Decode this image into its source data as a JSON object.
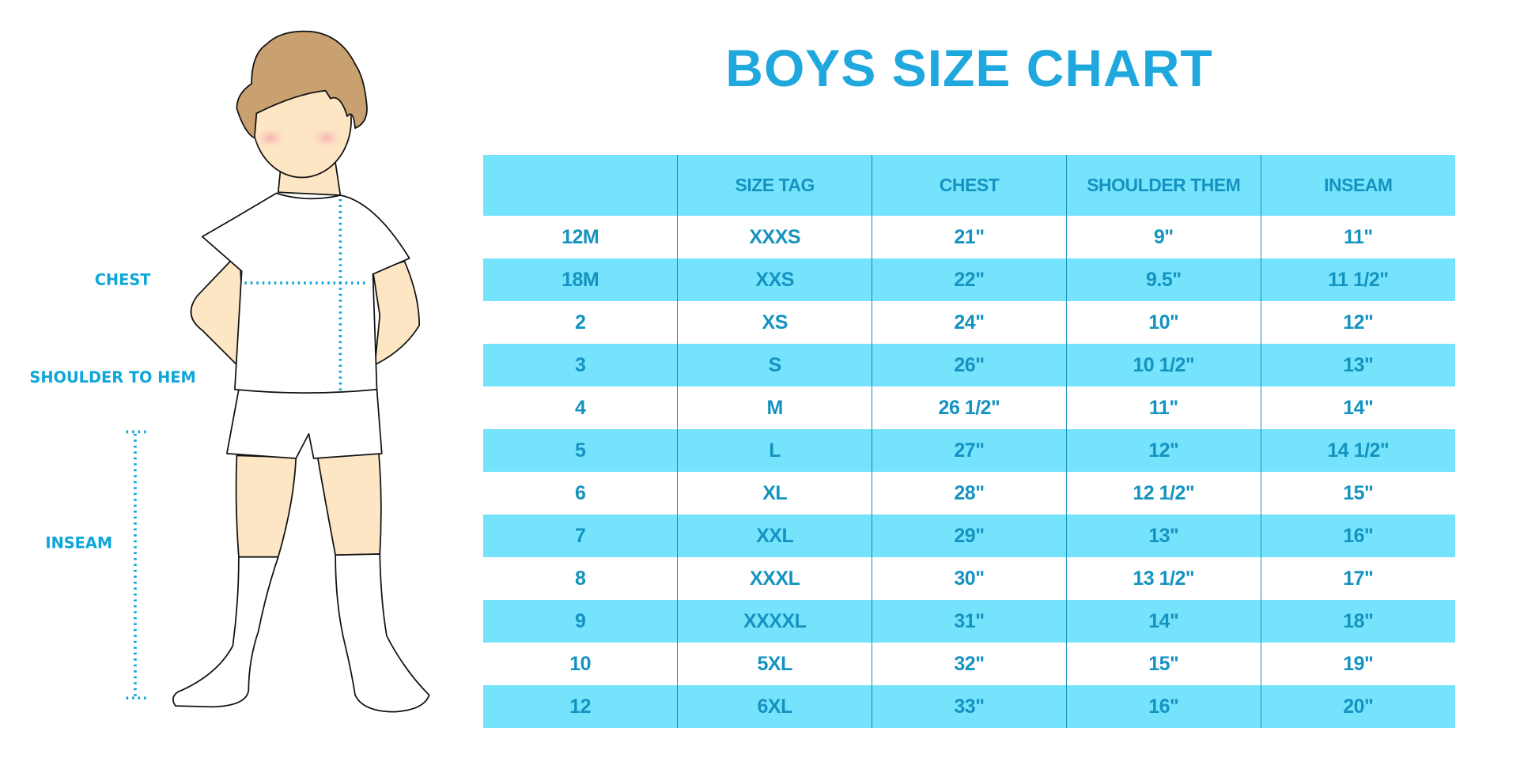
{
  "title": "BOYS SIZE CHART",
  "colors": {
    "accent": "#1fa8dd",
    "row_highlight": "#76e3fc",
    "table_text": "#1593c0",
    "hair": "#c9a070",
    "skin": "#fde6c4"
  },
  "illustration": {
    "labels": {
      "chest": "CHEST",
      "shoulder_to_hem": "SHOULDER TO HEM",
      "inseam": "INSEAM"
    }
  },
  "table": {
    "headers": [
      "",
      "SIZE TAG",
      "CHEST",
      "SHOULDER THEM",
      "INSEAM"
    ],
    "rows": [
      [
        "12M",
        "XXXS",
        "21\"",
        "9\"",
        "11\""
      ],
      [
        "18M",
        "XXS",
        "22\"",
        "9.5\"",
        "11 1/2\""
      ],
      [
        "2",
        "XS",
        "24\"",
        "10\"",
        "12\""
      ],
      [
        "3",
        "S",
        "26\"",
        "10 1/2\"",
        "13\""
      ],
      [
        "4",
        "M",
        "26 1/2\"",
        "11\"",
        "14\""
      ],
      [
        "5",
        "L",
        "27\"",
        "12\"",
        "14 1/2\""
      ],
      [
        "6",
        "XL",
        "28\"",
        "12 1/2\"",
        "15\""
      ],
      [
        "7",
        "XXL",
        "29\"",
        "13\"",
        "16\""
      ],
      [
        "8",
        "XXXL",
        "30\"",
        "13 1/2\"",
        "17\""
      ],
      [
        "9",
        "XXXXL",
        "31\"",
        "14\"",
        "18\""
      ],
      [
        "10",
        "5XL",
        "32\"",
        "15\"",
        "19\""
      ],
      [
        "12",
        "6XL",
        "33\"",
        "16\"",
        "20\""
      ]
    ]
  }
}
